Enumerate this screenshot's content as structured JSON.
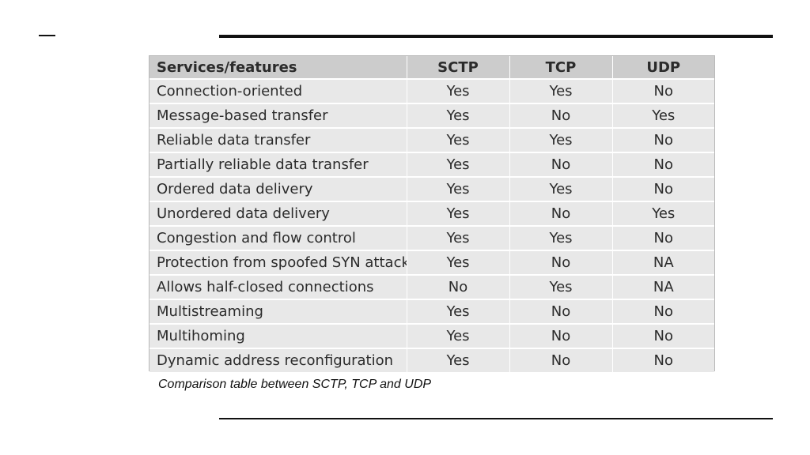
{
  "table": {
    "headers": [
      "Services/features",
      "SCTP",
      "TCP",
      "UDP"
    ],
    "rows": [
      [
        "Connection-oriented",
        "Yes",
        "Yes",
        "No"
      ],
      [
        "Message-based transfer",
        "Yes",
        "No",
        "Yes"
      ],
      [
        "Reliable data transfer",
        "Yes",
        "Yes",
        "No"
      ],
      [
        "Partially reliable data transfer",
        "Yes",
        "No",
        "No"
      ],
      [
        "Ordered data delivery",
        "Yes",
        "Yes",
        "No"
      ],
      [
        "Unordered data delivery",
        "Yes",
        "No",
        "Yes"
      ],
      [
        "Congestion and flow control",
        "Yes",
        "Yes",
        "No"
      ],
      [
        "Protection from spoofed SYN attacks",
        "Yes",
        "No",
        "NA"
      ],
      [
        "Allows half-closed connections",
        "No",
        "Yes",
        "NA"
      ],
      [
        "Multistreaming",
        "Yes",
        "No",
        "No"
      ],
      [
        "Multihoming",
        "Yes",
        "No",
        "No"
      ],
      [
        "Dynamic address reconfiguration",
        "Yes",
        "No",
        "No"
      ]
    ]
  },
  "caption": "Comparison table between SCTP, TCP and UDP"
}
